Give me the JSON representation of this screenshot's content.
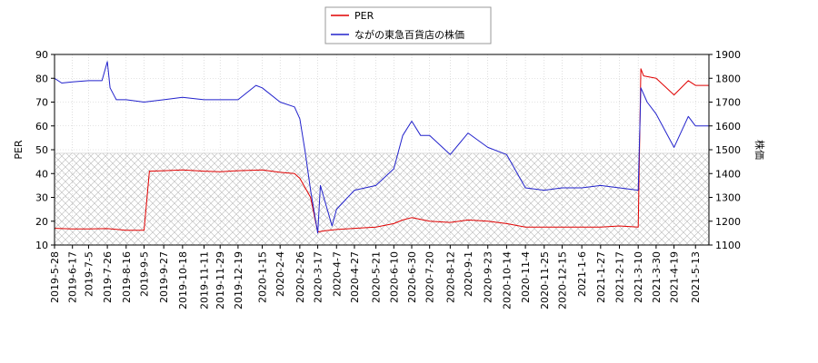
{
  "chart_data": {
    "type": "line",
    "legend": {
      "placement": "top-center",
      "entries": [
        {
          "label": "PER",
          "color": "#e00000"
        },
        {
          "label": "ながの東急百貨店の株価",
          "color": "#2222cc"
        }
      ]
    },
    "ylabel_left": "PER",
    "ylabel_right": "株価",
    "ylim_left": [
      10,
      90
    ],
    "ylim_right": [
      1100,
      1900
    ],
    "yticks_left": [
      "10",
      "20",
      "30",
      "40",
      "50",
      "60",
      "70",
      "80",
      "90"
    ],
    "yticks_right": [
      "1100",
      "1200",
      "1300",
      "1400",
      "1500",
      "1600",
      "1700",
      "1800",
      "1900"
    ],
    "xlim": [
      "2019-05-28",
      "2021-05-28"
    ],
    "xticks": [
      "2019-5-28",
      "2019-6-17",
      "2019-7-5",
      "2019-7-26",
      "2019-8-16",
      "2019-9-5",
      "2019-9-27",
      "2019-10-18",
      "2019-11-11",
      "2019-11-29",
      "2019-12-19",
      "2020-1-15",
      "2020-2-4",
      "2020-2-26",
      "2020-3-17",
      "2020-4-7",
      "2020-4-27",
      "2020-5-21",
      "2020-6-10",
      "2020-6-30",
      "2020-7-20",
      "2020-8-12",
      "2020-9-1",
      "2020-9-23",
      "2020-10-14",
      "2020-11-4",
      "2020-11-25",
      "2020-12-15",
      "2021-1-6",
      "2021-1-27",
      "2021-2-17",
      "2021-3-10",
      "2021-3-30",
      "2021-4-19",
      "2021-5-13"
    ],
    "grid": "dotted",
    "hatched_band_left": [
      10,
      48.5
    ],
    "series": [
      {
        "name": "PER",
        "axis": "left",
        "color": "#e00000",
        "x": [
          "2019-05-28",
          "2019-06-17",
          "2019-07-05",
          "2019-07-26",
          "2019-08-16",
          "2019-09-05",
          "2019-09-11",
          "2019-09-27",
          "2019-10-18",
          "2019-11-11",
          "2019-11-29",
          "2019-12-19",
          "2020-01-15",
          "2020-02-04",
          "2020-02-20",
          "2020-02-26",
          "2020-03-03",
          "2020-03-09",
          "2020-03-17",
          "2020-03-25",
          "2020-04-07",
          "2020-04-27",
          "2020-05-21",
          "2020-06-10",
          "2020-06-20",
          "2020-06-30",
          "2020-07-20",
          "2020-08-12",
          "2020-09-01",
          "2020-09-23",
          "2020-10-14",
          "2020-11-04",
          "2020-11-25",
          "2020-12-15",
          "2021-01-06",
          "2021-01-27",
          "2021-02-17",
          "2021-03-10",
          "2021-03-13",
          "2021-03-16",
          "2021-03-30",
          "2021-04-19",
          "2021-05-05",
          "2021-05-13",
          "2021-05-28"
        ],
        "values": [
          17,
          16.8,
          16.8,
          16.9,
          16.2,
          16.2,
          41,
          41.2,
          41.5,
          41,
          40.8,
          41.2,
          41.5,
          40.5,
          40,
          38,
          34,
          30,
          15.5,
          16,
          16.5,
          17,
          17.5,
          19,
          20.5,
          21.5,
          20,
          19.5,
          20.5,
          20,
          19,
          17.5,
          17.5,
          17.5,
          17.5,
          17.5,
          18,
          17.5,
          84,
          81,
          80,
          73,
          79,
          77,
          77
        ]
      },
      {
        "name": "ながの東急百貨店の株価",
        "axis": "right",
        "color": "#2222cc",
        "x": [
          "2019-05-28",
          "2019-06-05",
          "2019-06-17",
          "2019-07-05",
          "2019-07-20",
          "2019-07-26",
          "2019-07-29",
          "2019-08-05",
          "2019-08-16",
          "2019-09-05",
          "2019-09-27",
          "2019-10-18",
          "2019-11-11",
          "2019-11-29",
          "2019-12-19",
          "2020-01-08",
          "2020-01-15",
          "2020-02-04",
          "2020-02-20",
          "2020-02-26",
          "2020-03-03",
          "2020-03-09",
          "2020-03-17",
          "2020-03-20",
          "2020-04-02",
          "2020-04-07",
          "2020-04-27",
          "2020-05-21",
          "2020-06-10",
          "2020-06-20",
          "2020-06-30",
          "2020-07-10",
          "2020-07-20",
          "2020-08-12",
          "2020-09-01",
          "2020-09-23",
          "2020-10-14",
          "2020-11-04",
          "2020-11-25",
          "2020-12-15",
          "2021-01-06",
          "2021-01-27",
          "2021-02-17",
          "2021-03-10",
          "2021-03-13",
          "2021-03-20",
          "2021-03-30",
          "2021-04-19",
          "2021-05-05",
          "2021-05-13",
          "2021-05-28"
        ],
        "values": [
          1800,
          1780,
          1785,
          1790,
          1790,
          1870,
          1760,
          1710,
          1710,
          1700,
          1710,
          1720,
          1710,
          1710,
          1710,
          1770,
          1760,
          1700,
          1680,
          1630,
          1490,
          1330,
          1150,
          1350,
          1180,
          1250,
          1330,
          1350,
          1420,
          1560,
          1620,
          1560,
          1560,
          1480,
          1570,
          1510,
          1480,
          1340,
          1330,
          1340,
          1340,
          1350,
          1340,
          1330,
          1760,
          1700,
          1650,
          1510,
          1640,
          1600,
          1600
        ]
      }
    ]
  }
}
